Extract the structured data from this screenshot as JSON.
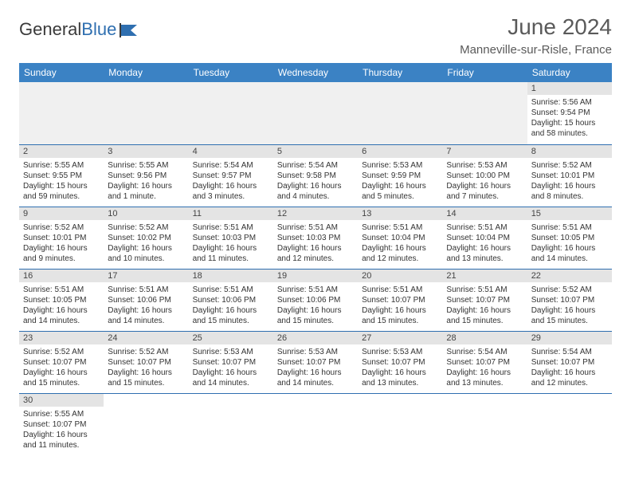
{
  "brand": {
    "part1": "General",
    "part2": "Blue"
  },
  "title": "June 2024",
  "location": "Manneville-sur-Risle, France",
  "colors": {
    "header_bg": "#3b82c4",
    "header_text": "#ffffff",
    "daynum_bg": "#e4e4e4",
    "empty_bg": "#f0f0f0",
    "row_border": "#2f6fb0",
    "brand_dark": "#3a3a3a",
    "brand_blue": "#2f6fb0",
    "title_color": "#5a5a5a"
  },
  "weekdays": [
    "Sunday",
    "Monday",
    "Tuesday",
    "Wednesday",
    "Thursday",
    "Friday",
    "Saturday"
  ],
  "weeks": [
    [
      null,
      null,
      null,
      null,
      null,
      null,
      {
        "n": "1",
        "sunrise": "5:56 AM",
        "sunset": "9:54 PM",
        "daylight": "15 hours and 58 minutes."
      }
    ],
    [
      {
        "n": "2",
        "sunrise": "5:55 AM",
        "sunset": "9:55 PM",
        "daylight": "15 hours and 59 minutes."
      },
      {
        "n": "3",
        "sunrise": "5:55 AM",
        "sunset": "9:56 PM",
        "daylight": "16 hours and 1 minute."
      },
      {
        "n": "4",
        "sunrise": "5:54 AM",
        "sunset": "9:57 PM",
        "daylight": "16 hours and 3 minutes."
      },
      {
        "n": "5",
        "sunrise": "5:54 AM",
        "sunset": "9:58 PM",
        "daylight": "16 hours and 4 minutes."
      },
      {
        "n": "6",
        "sunrise": "5:53 AM",
        "sunset": "9:59 PM",
        "daylight": "16 hours and 5 minutes."
      },
      {
        "n": "7",
        "sunrise": "5:53 AM",
        "sunset": "10:00 PM",
        "daylight": "16 hours and 7 minutes."
      },
      {
        "n": "8",
        "sunrise": "5:52 AM",
        "sunset": "10:01 PM",
        "daylight": "16 hours and 8 minutes."
      }
    ],
    [
      {
        "n": "9",
        "sunrise": "5:52 AM",
        "sunset": "10:01 PM",
        "daylight": "16 hours and 9 minutes."
      },
      {
        "n": "10",
        "sunrise": "5:52 AM",
        "sunset": "10:02 PM",
        "daylight": "16 hours and 10 minutes."
      },
      {
        "n": "11",
        "sunrise": "5:51 AM",
        "sunset": "10:03 PM",
        "daylight": "16 hours and 11 minutes."
      },
      {
        "n": "12",
        "sunrise": "5:51 AM",
        "sunset": "10:03 PM",
        "daylight": "16 hours and 12 minutes."
      },
      {
        "n": "13",
        "sunrise": "5:51 AM",
        "sunset": "10:04 PM",
        "daylight": "16 hours and 12 minutes."
      },
      {
        "n": "14",
        "sunrise": "5:51 AM",
        "sunset": "10:04 PM",
        "daylight": "16 hours and 13 minutes."
      },
      {
        "n": "15",
        "sunrise": "5:51 AM",
        "sunset": "10:05 PM",
        "daylight": "16 hours and 14 minutes."
      }
    ],
    [
      {
        "n": "16",
        "sunrise": "5:51 AM",
        "sunset": "10:05 PM",
        "daylight": "16 hours and 14 minutes."
      },
      {
        "n": "17",
        "sunrise": "5:51 AM",
        "sunset": "10:06 PM",
        "daylight": "16 hours and 14 minutes."
      },
      {
        "n": "18",
        "sunrise": "5:51 AM",
        "sunset": "10:06 PM",
        "daylight": "16 hours and 15 minutes."
      },
      {
        "n": "19",
        "sunrise": "5:51 AM",
        "sunset": "10:06 PM",
        "daylight": "16 hours and 15 minutes."
      },
      {
        "n": "20",
        "sunrise": "5:51 AM",
        "sunset": "10:07 PM",
        "daylight": "16 hours and 15 minutes."
      },
      {
        "n": "21",
        "sunrise": "5:51 AM",
        "sunset": "10:07 PM",
        "daylight": "16 hours and 15 minutes."
      },
      {
        "n": "22",
        "sunrise": "5:52 AM",
        "sunset": "10:07 PM",
        "daylight": "16 hours and 15 minutes."
      }
    ],
    [
      {
        "n": "23",
        "sunrise": "5:52 AM",
        "sunset": "10:07 PM",
        "daylight": "16 hours and 15 minutes."
      },
      {
        "n": "24",
        "sunrise": "5:52 AM",
        "sunset": "10:07 PM",
        "daylight": "16 hours and 15 minutes."
      },
      {
        "n": "25",
        "sunrise": "5:53 AM",
        "sunset": "10:07 PM",
        "daylight": "16 hours and 14 minutes."
      },
      {
        "n": "26",
        "sunrise": "5:53 AM",
        "sunset": "10:07 PM",
        "daylight": "16 hours and 14 minutes."
      },
      {
        "n": "27",
        "sunrise": "5:53 AM",
        "sunset": "10:07 PM",
        "daylight": "16 hours and 13 minutes."
      },
      {
        "n": "28",
        "sunrise": "5:54 AM",
        "sunset": "10:07 PM",
        "daylight": "16 hours and 13 minutes."
      },
      {
        "n": "29",
        "sunrise": "5:54 AM",
        "sunset": "10:07 PM",
        "daylight": "16 hours and 12 minutes."
      }
    ],
    [
      {
        "n": "30",
        "sunrise": "5:55 AM",
        "sunset": "10:07 PM",
        "daylight": "16 hours and 11 minutes."
      },
      null,
      null,
      null,
      null,
      null,
      null
    ]
  ],
  "labels": {
    "sunrise": "Sunrise: ",
    "sunset": "Sunset: ",
    "daylight": "Daylight: "
  }
}
